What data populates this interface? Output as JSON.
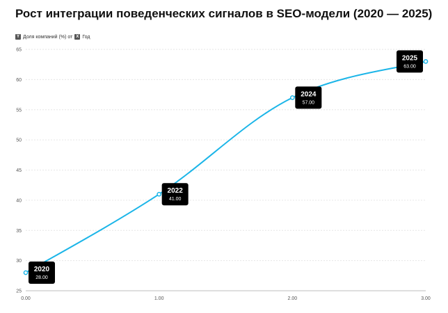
{
  "chart_data": {
    "type": "line",
    "title": "Рост интеграции поведенческих сигналов в SEO-модели (2020 — 2025)",
    "axis_caption": {
      "y_badge": "Y",
      "y_text": "Доля компаний (%) от",
      "x_badge": "X",
      "x_text": "Год"
    },
    "x": [
      0,
      1,
      2,
      3
    ],
    "x_tick_labels": [
      "0.00",
      "1.00",
      "2.00",
      "3.00"
    ],
    "xlim": [
      0,
      3
    ],
    "ylim": [
      25,
      65
    ],
    "y_ticks": [
      "25",
      "30",
      "35",
      "40",
      "45",
      "50",
      "55",
      "60",
      "65"
    ],
    "grid": true,
    "series": [
      {
        "values": [
          28,
          41,
          57,
          63
        ],
        "point_labels": [
          "2020",
          "2022",
          "2024",
          "2025"
        ],
        "value_labels": [
          "28.00",
          "41.00",
          "57.00",
          "63.00"
        ],
        "color": "#1bb5e8"
      }
    ],
    "callout_color": "#000000"
  }
}
